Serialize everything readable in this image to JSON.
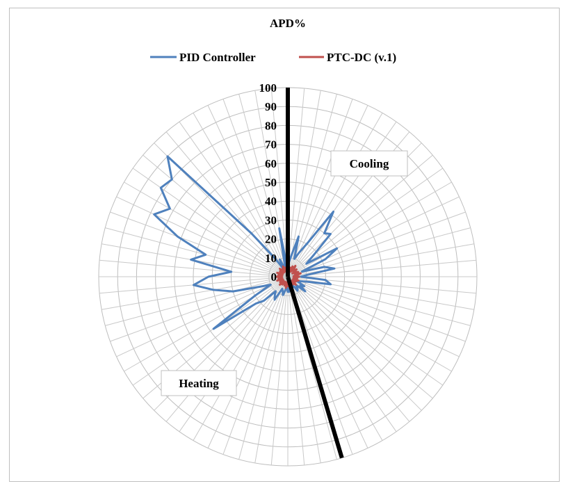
{
  "chart_data": {
    "type": "radar",
    "title": "APD%",
    "legend_position": "top",
    "grid": true,
    "rlim": [
      0,
      100
    ],
    "r_ticks": [
      "0",
      "10",
      "20",
      "30",
      "40",
      "50",
      "60",
      "70",
      "80",
      "90",
      "100"
    ],
    "spokes": 72,
    "annotations": [
      "Cooling",
      "Heating"
    ],
    "series": [
      {
        "name": "PID Controller",
        "color": "#4f81bd",
        "values": [
          5,
          8,
          12,
          22,
          10,
          14,
          20,
          42,
          30,
          32,
          18,
          12,
          30,
          22,
          8,
          20,
          25,
          10,
          7,
          20,
          23,
          10,
          7,
          5,
          10,
          8,
          12,
          6,
          8,
          9,
          5,
          6,
          3,
          4,
          5,
          8,
          8,
          5,
          7,
          10,
          8,
          7,
          14,
          12,
          10,
          18,
          22,
          48,
          20,
          10,
          15,
          30,
          40,
          50,
          42,
          30,
          52,
          45,
          62,
          78,
          72,
          82,
          80,
          90,
          30,
          12,
          5,
          10,
          4,
          6,
          26,
          6
        ]
      },
      {
        "name": "PTC-DC (v.1)",
        "color": "#c0504d",
        "values": [
          4,
          6,
          3,
          5,
          4,
          6,
          3,
          7,
          5,
          4,
          6,
          3,
          5,
          6,
          4,
          7,
          5,
          3,
          6,
          4,
          5,
          3,
          6,
          4,
          5,
          3,
          4,
          6,
          3,
          5,
          4,
          3,
          5,
          4,
          6,
          3,
          5,
          4,
          6,
          3,
          5,
          4,
          3,
          5,
          4,
          6,
          3,
          5,
          4,
          3,
          6,
          4,
          5,
          3,
          6,
          4,
          5,
          3,
          6,
          4,
          3,
          5,
          4,
          6,
          3,
          5,
          4,
          6,
          3,
          5,
          4,
          6
        ]
      }
    ]
  }
}
